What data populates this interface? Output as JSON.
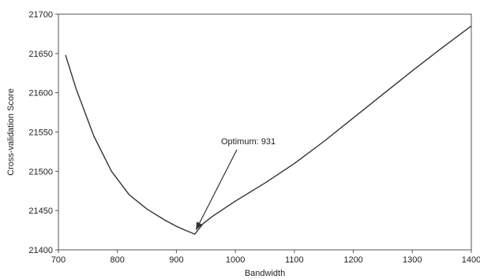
{
  "chart_data": {
    "type": "line",
    "title": "",
    "xlabel": "Bandwidth",
    "ylabel": "Cross-validation Score",
    "xlim": [
      700,
      1400
    ],
    "ylim": [
      21400,
      21700
    ],
    "xticks": [
      700,
      800,
      900,
      1000,
      1100,
      1200,
      1300,
      1400
    ],
    "yticks": [
      21400,
      21450,
      21500,
      21550,
      21600,
      21650,
      21700
    ],
    "grid": false,
    "legend": "none",
    "series": [
      {
        "color": "#333333",
        "x": [
          712,
          730,
          760,
          790,
          820,
          850,
          880,
          900,
          915,
          925,
          931,
          945,
          960,
          1000,
          1050,
          1100,
          1150,
          1200,
          1250,
          1300,
          1350,
          1400
        ],
        "y": [
          21648,
          21605,
          21545,
          21500,
          21470,
          21452,
          21438,
          21430,
          21425,
          21422,
          21420,
          21433,
          21442,
          21462,
          21485,
          21510,
          21538,
          21568,
          21598,
          21628,
          21657,
          21685
        ]
      }
    ],
    "annotations": [
      {
        "text": "Optimum: 931",
        "x": 931,
        "y": 21420
      }
    ]
  }
}
